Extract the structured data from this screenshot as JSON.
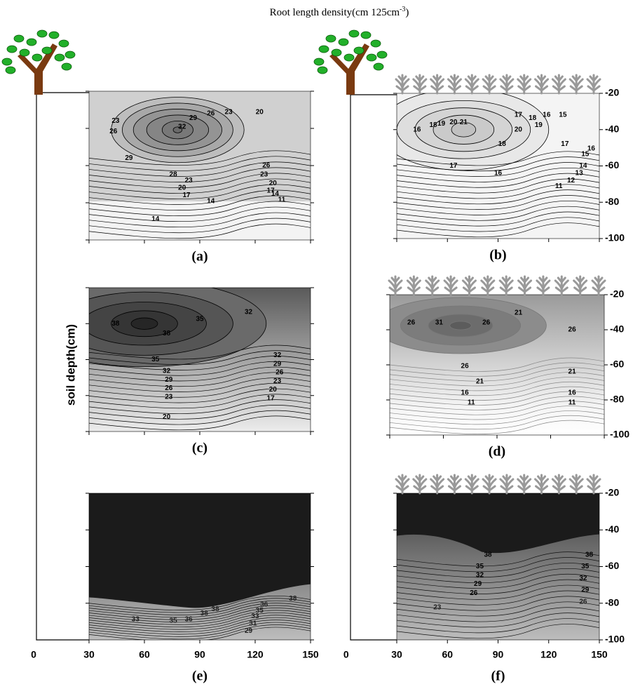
{
  "chart_data": {
    "type": "contour",
    "title": "Root length density(cm 125cm",
    "title_superscript": "-3",
    "title_suffix": ")",
    "y_axis_label": "soil depth(cm)",
    "xlim": [
      0,
      150
    ],
    "xticks": [
      0,
      30,
      60,
      90,
      120,
      150
    ],
    "ylim": [
      -100,
      -20
    ],
    "yticks": [
      -20,
      -40,
      -60,
      -80,
      -100
    ],
    "panels": [
      {
        "label": "(a)",
        "contour_labels": [
          23,
          26,
          29,
          32,
          26,
          23,
          20,
          29,
          28,
          23,
          26,
          23,
          20,
          17,
          20,
          17,
          14,
          14,
          11,
          14
        ]
      },
      {
        "label": "(b)",
        "contour_labels": [
          16,
          18,
          19,
          20,
          21,
          17,
          18,
          16,
          15,
          19,
          20,
          17,
          18,
          17,
          16,
          15,
          16,
          14,
          13,
          12,
          11
        ]
      },
      {
        "label": "(c)",
        "contour_labels": [
          38,
          35,
          38,
          32,
          35,
          32,
          29,
          26,
          23,
          20,
          32,
          29,
          26,
          23,
          20,
          17
        ]
      },
      {
        "label": "(d)",
        "contour_labels": [
          26,
          31,
          26,
          21,
          26,
          26,
          21,
          21,
          16,
          16,
          11,
          11
        ]
      },
      {
        "label": "(e)",
        "contour_labels": [
          33,
          35,
          36,
          38,
          38,
          36,
          35,
          33,
          31,
          29,
          38
        ]
      },
      {
        "label": "(f)",
        "contour_labels": [
          38,
          35,
          32,
          29,
          26,
          23,
          38,
          35,
          32,
          29,
          26
        ]
      }
    ]
  }
}
